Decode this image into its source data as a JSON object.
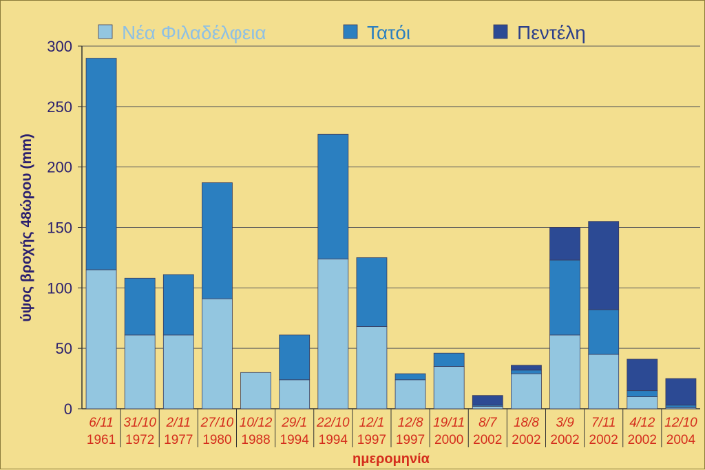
{
  "chart_data": {
    "type": "bar",
    "stacked": true,
    "title": "",
    "xlabel": "ημερομηνία",
    "ylabel": "ύψος βροχής 48ώρου (mm)",
    "ylim": [
      0,
      300
    ],
    "yticks": [
      0,
      50,
      100,
      150,
      200,
      250,
      300
    ],
    "grid": true,
    "legend_position": "top",
    "categories": [
      {
        "day": "6/11",
        "year": "1961"
      },
      {
        "day": "31/10",
        "year": "1972"
      },
      {
        "day": "2/11",
        "year": "1977"
      },
      {
        "day": "27/10",
        "year": "1980"
      },
      {
        "day": "10/12",
        "year": "1988"
      },
      {
        "day": "29/1",
        "year": "1994"
      },
      {
        "day": "22/10",
        "year": "1994"
      },
      {
        "day": "12/1",
        "year": "1997"
      },
      {
        "day": "12/8",
        "year": "1997"
      },
      {
        "day": "19/11",
        "year": "2000"
      },
      {
        "day": "8/7",
        "year": "2002"
      },
      {
        "day": "18/8",
        "year": "2002"
      },
      {
        "day": "3/9",
        "year": "2002"
      },
      {
        "day": "7/11",
        "year": "2002"
      },
      {
        "day": "4/12",
        "year": "2002"
      },
      {
        "day": "12/10",
        "year": "2004"
      }
    ],
    "series": [
      {
        "name": "Νέα Φιλαδέλφεια",
        "color": "#93c6e0",
        "values": [
          115,
          61,
          61,
          91,
          30,
          24,
          124,
          68,
          24,
          35,
          2,
          29,
          61,
          45,
          10,
          1
        ]
      },
      {
        "name": "Τατόι",
        "color": "#2b7fc0",
        "values": [
          175,
          47,
          50,
          96,
          0,
          37,
          103,
          57,
          5,
          11,
          1,
          3,
          62,
          37,
          5,
          2
        ]
      },
      {
        "name": "Πεντέλη",
        "color": "#2c4a94",
        "values": [
          0,
          0,
          0,
          0,
          0,
          0,
          0,
          0,
          0,
          0,
          8,
          4,
          27,
          73,
          26,
          22
        ]
      }
    ],
    "colors": {
      "background": "#f3df8f",
      "grid": "#5a5a5a",
      "axis_text": "#2a1f6e",
      "category_text": "#d42d1c"
    }
  }
}
